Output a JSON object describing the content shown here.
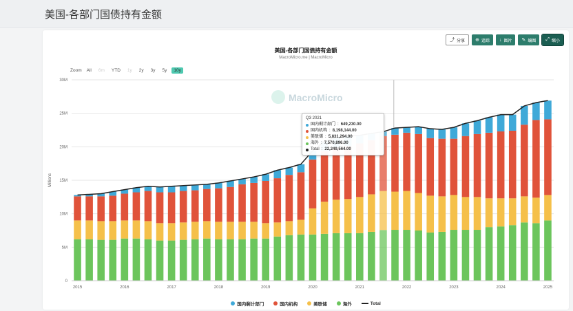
{
  "page": {
    "title": "美国-各部门国债持有金额"
  },
  "toolbar": {
    "share": "分享",
    "track": "追踪",
    "image": "图片",
    "edit": "编图",
    "shrink": "缩小"
  },
  "chart": {
    "title": "美国-各部门国债持有金额",
    "subtitle": "MacroMicro.me | MacroMicro",
    "watermark": "MacroMicro"
  },
  "range": {
    "label": "Zoom",
    "options": [
      "All",
      "6m",
      "YTD",
      "1y",
      "2y",
      "3y",
      "5y",
      "10y"
    ],
    "selected": "10y"
  },
  "tooltip": {
    "date": "Q3 2021",
    "rows": [
      {
        "name": "国内剩计部门",
        "value": "649,230.00",
        "color": "#3fa9d8"
      },
      {
        "name": "国内机构",
        "value": "8,198,144.00",
        "color": "#e0533a"
      },
      {
        "name": "美联储",
        "value": "5,831,294.00",
        "color": "#f5c04a"
      },
      {
        "name": "海外",
        "value": "7,570,896.00",
        "color": "#6cc55c"
      },
      {
        "name": "Total",
        "value": "22,249,564.00",
        "color": "#222222"
      }
    ]
  },
  "chart_data": {
    "type": "bar",
    "stacked": true,
    "ylabel": "Millions",
    "ylim": [
      0,
      30000000
    ],
    "yticks": [
      {
        "value": 0,
        "label": "0"
      },
      {
        "value": 5000000,
        "label": "5M"
      },
      {
        "value": 10000000,
        "label": "10M"
      },
      {
        "value": 15000000,
        "label": "15M"
      },
      {
        "value": 20000000,
        "label": "20M"
      },
      {
        "value": 25000000,
        "label": "25M"
      },
      {
        "value": 30000000,
        "label": "30M"
      }
    ],
    "xticks": [
      "2015",
      "2016",
      "2017",
      "2018",
      "2019",
      "2020",
      "2021",
      "2022",
      "2023",
      "2024",
      "2025"
    ],
    "legend_position": "bottom",
    "highlighted_category": "Q3 2021",
    "categories": [
      "Q1 2015",
      "Q2 2015",
      "Q3 2015",
      "Q4 2015",
      "Q1 2016",
      "Q2 2016",
      "Q3 2016",
      "Q4 2016",
      "Q1 2017",
      "Q2 2017",
      "Q3 2017",
      "Q4 2017",
      "Q1 2018",
      "Q2 2018",
      "Q3 2018",
      "Q4 2018",
      "Q1 2019",
      "Q2 2019",
      "Q3 2019",
      "Q4 2019",
      "Q1 2020",
      "Q2 2020",
      "Q3 2020",
      "Q4 2020",
      "Q1 2021",
      "Q2 2021",
      "Q3 2021",
      "Q4 2021",
      "Q1 2022",
      "Q2 2022",
      "Q3 2022",
      "Q4 2022",
      "Q1 2023",
      "Q2 2023",
      "Q3 2023",
      "Q4 2023",
      "Q1 2024",
      "Q2 2024",
      "Q3 2024",
      "Q4 2024",
      "Q1 2025"
    ],
    "series": [
      {
        "name": "海外",
        "color": "#6cc55c",
        "values": [
          6200000,
          6200000,
          6100000,
          6100000,
          6300000,
          6300000,
          6200000,
          6000000,
          6000000,
          6100000,
          6200000,
          6300000,
          6200000,
          6200000,
          6200000,
          6300000,
          6300000,
          6600000,
          6800000,
          6900000,
          6900000,
          7000000,
          7100000,
          7100000,
          7100000,
          7300000,
          7570896,
          7600000,
          7600000,
          7500000,
          7200000,
          7300000,
          7600000,
          7600000,
          7600000,
          8000000,
          8100000,
          8300000,
          8700000,
          8600000,
          9000000
        ]
      },
      {
        "name": "美联储",
        "color": "#f5c04a",
        "values": [
          2800000,
          2800000,
          2800000,
          2800000,
          2700000,
          2700000,
          2700000,
          2600000,
          2600000,
          2600000,
          2600000,
          2600000,
          2600000,
          2600000,
          2600000,
          2500000,
          2300000,
          2100000,
          2100000,
          2200000,
          3900000,
          4800000,
          5000000,
          5100000,
          5400000,
          5600000,
          5831294,
          5700000,
          5800000,
          5600000,
          5500000,
          5300000,
          5200000,
          4900000,
          4900000,
          4300000,
          4200000,
          4000000,
          3900000,
          3800000,
          3800000
        ]
      },
      {
        "name": "国内机构",
        "color": "#e0533a",
        "values": [
          3600000,
          3600000,
          3700000,
          3800000,
          4000000,
          4200000,
          4500000,
          4600000,
          4600000,
          4700000,
          4700000,
          4800000,
          5000000,
          5200000,
          5600000,
          5800000,
          6300000,
          6600000,
          6900000,
          7100000,
          7300000,
          7600000,
          7800000,
          7900000,
          8000000,
          8100000,
          8198144,
          8500000,
          8700000,
          8800000,
          8600000,
          8600000,
          8400000,
          9100000,
          9400000,
          9800000,
          10000000,
          10100000,
          10700000,
          11600000,
          11300000
        ]
      },
      {
        "name": "国内剩计部门",
        "color": "#3fa9d8",
        "values": [
          200000,
          300000,
          400000,
          600000,
          600000,
          700000,
          700000,
          800000,
          900000,
          800000,
          800000,
          700000,
          800000,
          900000,
          800000,
          900000,
          1000000,
          1200000,
          1100000,
          1200000,
          1300000,
          1400000,
          1500000,
          1600000,
          1200000,
          1000000,
          649230,
          1000000,
          800000,
          1100000,
          1400000,
          1400000,
          1700000,
          1900000,
          2000000,
          2300000,
          2500000,
          2400000,
          2800000,
          2600000,
          2800000
        ]
      }
    ],
    "line": {
      "name": "Total",
      "color": "#222222",
      "values": [
        12800000,
        12900000,
        13000000,
        13300000,
        13600000,
        13900000,
        14100000,
        14000000,
        14100000,
        14200000,
        14300000,
        14400000,
        14600000,
        14900000,
        15200000,
        15500000,
        15900000,
        16500000,
        16900000,
        17400000,
        19400000,
        20800000,
        21400000,
        21700000,
        21700000,
        22000000,
        22249564,
        22800000,
        22900000,
        23000000,
        22700000,
        22600000,
        22900000,
        23500000,
        23900000,
        24400000,
        24800000,
        24800000,
        26100000,
        26600000,
        26900000
      ]
    }
  },
  "legend": [
    {
      "name": "国内剩计部门",
      "color": "#3fa9d8",
      "shape": "dot"
    },
    {
      "name": "国内机构",
      "color": "#e0533a",
      "shape": "dot"
    },
    {
      "name": "美联储",
      "color": "#f5c04a",
      "shape": "dot"
    },
    {
      "name": "海外",
      "color": "#6cc55c",
      "shape": "dot"
    },
    {
      "name": "Total",
      "color": "#222222",
      "shape": "line"
    }
  ]
}
